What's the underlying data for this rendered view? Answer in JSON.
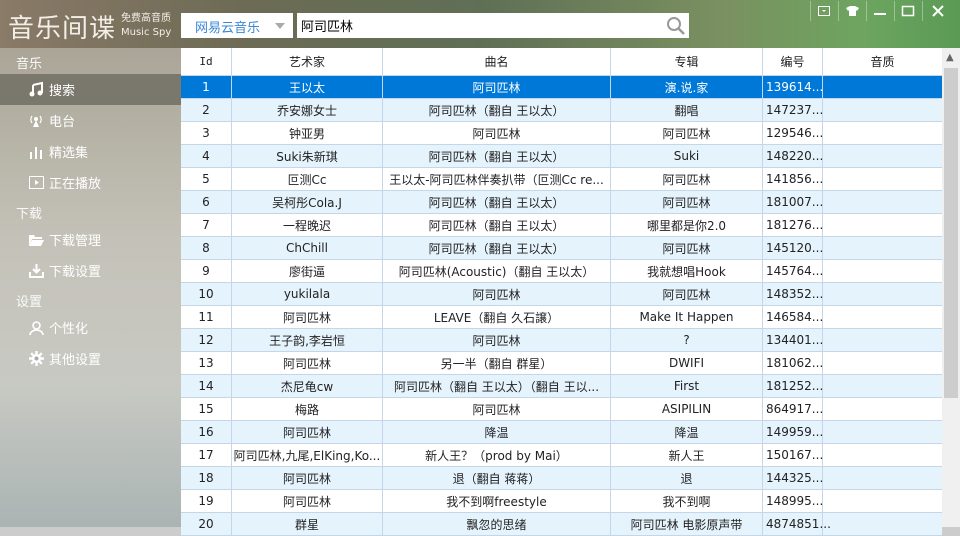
{
  "app": {
    "logo": "音乐间谍",
    "logo_sub1": "免费高音质",
    "logo_sub2": "Music Spy"
  },
  "search": {
    "source": "网易云音乐",
    "query": "阿司匹林"
  },
  "window_buttons": [
    "menu-icon",
    "skin-icon",
    "minimize-icon",
    "maximize-icon",
    "close-icon"
  ],
  "sidebar": {
    "sections": [
      {
        "title": "音乐",
        "items": [
          {
            "label": "搜索",
            "icon": "music-note-icon",
            "selected": true
          },
          {
            "label": "电台",
            "icon": "radio-icon"
          },
          {
            "label": "精选集",
            "icon": "bars-icon"
          },
          {
            "label": "正在播放",
            "icon": "play-icon"
          }
        ]
      },
      {
        "title": "下载",
        "items": [
          {
            "label": "下载管理",
            "icon": "folder-icon"
          },
          {
            "label": "下载设置",
            "icon": "download-icon"
          }
        ]
      },
      {
        "title": "设置",
        "items": [
          {
            "label": "个性化",
            "icon": "user-icon"
          },
          {
            "label": "其他设置",
            "icon": "gear-icon"
          }
        ]
      }
    ]
  },
  "table": {
    "columns": [
      "Id",
      "艺术家",
      "曲名",
      "专辑",
      "编号",
      "音质"
    ],
    "rows": [
      [
        "1",
        "王以太",
        "阿司匹林",
        "演.说.家",
        "139614...",
        ""
      ],
      [
        "2",
        "乔安娜女士",
        "阿司匹林（翻自 王以太）",
        "翻唱",
        "147237...",
        ""
      ],
      [
        "3",
        "钟亚男",
        "阿司匹林",
        "阿司匹林",
        "129546...",
        ""
      ],
      [
        "4",
        "Suki朱新琪",
        "阿司匹林（翻自 王以太）",
        "Suki",
        "148220...",
        ""
      ],
      [
        "5",
        "叵测Cc",
        "王以太-阿司匹林伴奏扒带（叵测Cc re...",
        "阿司匹林",
        "141856...",
        ""
      ],
      [
        "6",
        "吴柯彤Cola.J",
        "阿司匹林（翻自 王以太）",
        "阿司匹林",
        "181007...",
        ""
      ],
      [
        "7",
        "一程晚迟",
        "阿司匹林（翻自 王以太）",
        "哪里都是你2.0",
        "181276...",
        ""
      ],
      [
        "8",
        "ChChill",
        "阿司匹林（翻自 王以太）",
        "阿司匹林",
        "145120...",
        ""
      ],
      [
        "9",
        "廖街逼",
        "阿司匹林(Acoustic)（翻自 王以太）",
        "我就想唱Hook",
        "145764...",
        ""
      ],
      [
        "10",
        "yukilala",
        "阿司匹林",
        "阿司匹林",
        "148352...",
        ""
      ],
      [
        "11",
        "阿司匹林",
        "LEAVE（翻自 久石譲）",
        "Make It Happen",
        "146584...",
        ""
      ],
      [
        "12",
        "王子韵,李岩恒",
        "阿司匹林",
        "?",
        "134401...",
        ""
      ],
      [
        "13",
        "阿司匹林",
        "另一半（翻自 群星）",
        "DWIFI",
        "181062...",
        ""
      ],
      [
        "14",
        "杰尼龟cw",
        "阿司匹林（翻自 王以太）（翻自 王以...",
        "First",
        "181252...",
        ""
      ],
      [
        "15",
        "梅路",
        "阿司匹林",
        "ASIPILIN",
        "864917...",
        ""
      ],
      [
        "16",
        "阿司匹林",
        "降温",
        "降温",
        "149959...",
        ""
      ],
      [
        "17",
        "阿司匹林,九尾,ElKing,Ko...",
        "新人王？（prod by Mai）",
        "新人王",
        "150167...",
        ""
      ],
      [
        "18",
        "阿司匹林",
        "退（翻自 蒋蒋）",
        "退",
        "144325...",
        ""
      ],
      [
        "19",
        "阿司匹林",
        "我不到啊freestyle",
        "我不到啊",
        "148995...",
        ""
      ],
      [
        "20",
        "群星",
        "飘忽的思绪",
        "阿司匹林 电影原声带",
        "4874851...",
        ""
      ]
    ],
    "selected_row": 1
  },
  "colors": {
    "accent": "#0078d7",
    "row_alt": "#e5f3fc",
    "source_text": "#3a86d6"
  }
}
